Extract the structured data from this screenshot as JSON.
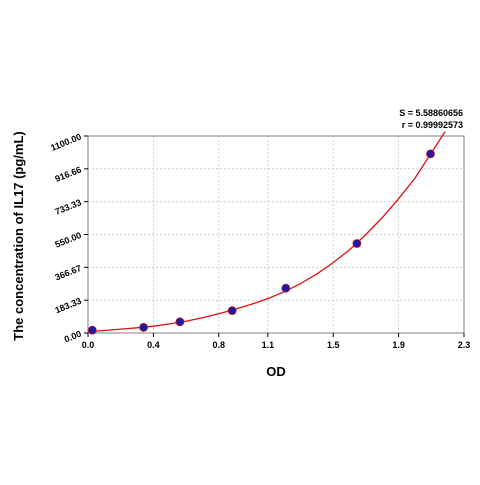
{
  "chart_data": {
    "type": "scatter",
    "title": "",
    "xlabel": "OD",
    "ylabel": "The concentration of  IL17 (pg/mL)",
    "xlim": [
      0,
      2.3
    ],
    "ylim": [
      0,
      1100
    ],
    "x_ticks": [
      "0.0",
      "0.4",
      "0.8",
      "1.1",
      "1.5",
      "1.9",
      "2.3"
    ],
    "y_ticks": [
      "0.00",
      "183.33",
      "366.67",
      "550.00",
      "733.33",
      "916.66",
      "1100.00"
    ],
    "grid": true,
    "stats": {
      "s": "S = 5.58860656",
      "r": "r = 0.99992573"
    },
    "series": [
      {
        "type": "scatter",
        "marker_color": "#1a1aa8",
        "x": [
          0.026,
          0.34,
          0.562,
          0.882,
          1.21,
          1.645,
          2.095
        ],
        "y": [
          15.6,
          31.25,
          62.5,
          125,
          250,
          500,
          1000
        ]
      },
      {
        "type": "line",
        "line_color": "#e01010",
        "x": [
          0.0,
          0.1,
          0.2,
          0.3,
          0.4,
          0.5,
          0.6,
          0.7,
          0.8,
          0.9,
          1.0,
          1.1,
          1.2,
          1.3,
          1.4,
          1.5,
          1.6,
          1.7,
          1.8,
          1.9,
          2.0,
          2.1,
          2.185
        ],
        "y": [
          6,
          14,
          22,
          29,
          38,
          51,
          66,
          85,
          108,
          133,
          160,
          192,
          230,
          276,
          330,
          393,
          465,
          550,
          645,
          750,
          865,
          1005,
          1125
        ]
      }
    ]
  }
}
